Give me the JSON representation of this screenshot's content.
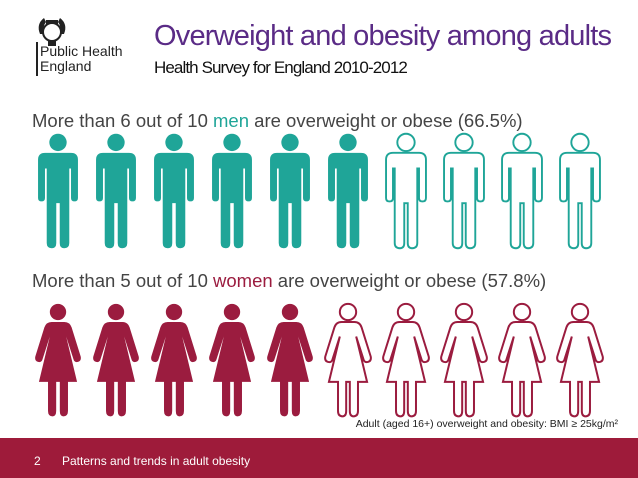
{
  "logo": {
    "line1": "Public Health",
    "line2": "England"
  },
  "title": "Overweight and obesity among adults",
  "subtitle": "Health Survey for England 2010-2012",
  "men": {
    "pre": "More than 6 out of 10 ",
    "highlight": "men",
    "post": " are overweight or obese (66.5%)",
    "value_percent": 66.5,
    "filled_icons": 6,
    "total_icons": 10,
    "color": "#1fa598",
    "icon": "man-icon"
  },
  "women": {
    "pre": "More than 5 out of 10 ",
    "highlight": "women",
    "post": " are overweight or obese (57.8%)",
    "value_percent": 57.8,
    "filled_icons": 5,
    "total_icons": 10,
    "color": "#9b1c3f",
    "icon": "woman-icon"
  },
  "note": "Adult (aged 16+) overweight and obesity: BMI ≥ 25kg/m²",
  "footer": {
    "page": "2",
    "text": "Patterns and trends in adult obesity",
    "color": "#9e1b3a"
  },
  "colors": {
    "title": "#5a2b86"
  }
}
